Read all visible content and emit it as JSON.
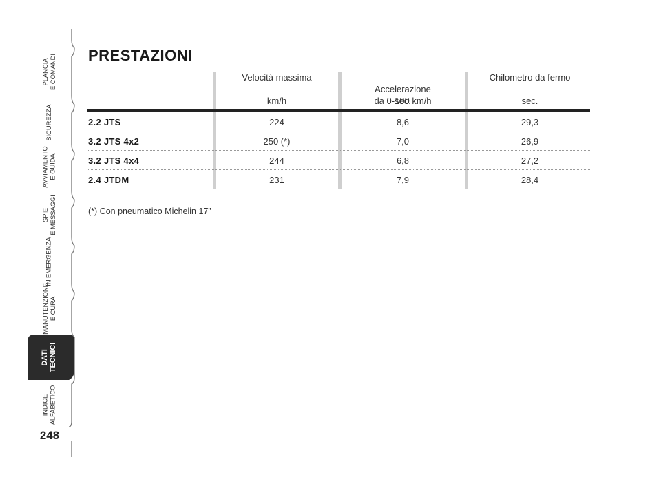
{
  "sidebar": {
    "tabs": [
      {
        "line1": "PLANCIA",
        "line2": "E COMANDI"
      },
      {
        "line1": "SICUREZZA",
        "line2": ""
      },
      {
        "line1": "AVVIAMENTO",
        "line2": "E GUIDA"
      },
      {
        "line1": "SPIE",
        "line2": "E MESSAGGI"
      },
      {
        "line1": "IN EMERGENZA",
        "line2": ""
      },
      {
        "line1": "MANUTENZIONE",
        "line2": "E CURA"
      },
      {
        "line1": "DATI",
        "line2": "TECNICI"
      },
      {
        "line1": "INDICE",
        "line2": "ALFABETICO"
      }
    ],
    "active_tab": "DATI TECNICI",
    "active_color": "#2b2b2b",
    "page_number": "248"
  },
  "page": {
    "title": "PRESTAZIONI",
    "columns": [
      {
        "label": "Velocità massima",
        "unit": "km/h"
      },
      {
        "label": "Accelerazione\nda 0-100 km/h",
        "unit": "sec."
      },
      {
        "label": "Chilometro da fermo",
        "unit": "sec."
      }
    ],
    "rows": [
      {
        "model": "2.2 JTS",
        "values": [
          "224",
          "8,6",
          "29,3"
        ]
      },
      {
        "model": "3.2 JTS 4x2",
        "values": [
          "250 (*)",
          "7,0",
          "26,9"
        ]
      },
      {
        "model": "3.2 JTS 4x4",
        "values": [
          "244",
          "6,8",
          "27,2"
        ]
      },
      {
        "model": "2.4 JTDM",
        "values": [
          "231",
          "7,9",
          "28,4"
        ]
      }
    ],
    "footnote": "(*) Con pneumatico Michelin 17”"
  }
}
